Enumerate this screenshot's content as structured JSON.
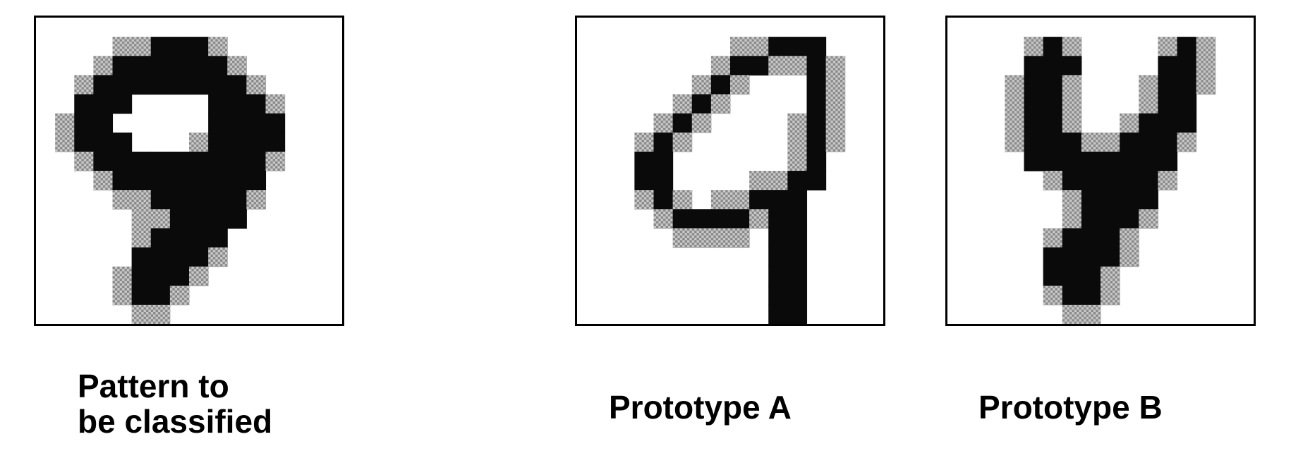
{
  "panels": [
    {
      "id": "pattern",
      "caption_lines": [
        "Pattern to",
        "be classified"
      ],
      "grid": [
        "................",
        "....ooOOOo......",
        "...oOOOOOOo.....",
        "..oOOOOOOOOo....",
        "..OOO....OOOo...",
        ".oOO.....OOOO...",
        ".oOOO...oOOOO...",
        "..oOOOOOOOOOo...",
        "...oOOOOOOOO....",
        "....ooOOOOOo....",
        ".....ooOOOO.....",
        ".....oOOOO......",
        ".....OOOOo......",
        "....oOOOo.......",
        "....oOOo........",
        ".....oo........."
      ]
    },
    {
      "id": "prototype-a",
      "caption_lines": [
        "Prototype A"
      ],
      "grid": [
        "................",
        "........ooOOO...",
        ".......oOOooOo..",
        "......oOo...Oo..",
        ".....oOo....Oo..",
        "....oOo....oOo..",
        "...oOo.....oOo..",
        "...OO......oO...",
        "...OO....ooOO...",
        "...oOo.ooOOO....",
        "....oOOOOoOO....",
        ".....oooo.OO....",
        "..........OO....",
        "..........OO....",
        "..........OO....",
        "..........OO...."
      ]
    },
    {
      "id": "prototype-b",
      "caption_lines": [
        "Prototype B"
      ],
      "grid": [
        "................",
        "....oOo....oOo..",
        "....OOO....OOo..",
        "...oOOo...oOOo..",
        "...oOOo...oOO...",
        "...oOOo..oOOO...",
        "...oOOOooOOOo...",
        "....OOOOOOOO....",
        ".....oOOOOOo....",
        "......oOOOO.....",
        "......oOOOo.....",
        ".....oOOOo......",
        ".....OOOOo......",
        ".....OOOo.......",
        ".....oOOo.......",
        "......oo........"
      ]
    }
  ],
  "colors": {
    "dark": "#0a0a0a",
    "stipple": "#8a8a8a",
    "stipple_light": "#c8c8c8",
    "background": "#ffffff",
    "frame": "#000000"
  }
}
